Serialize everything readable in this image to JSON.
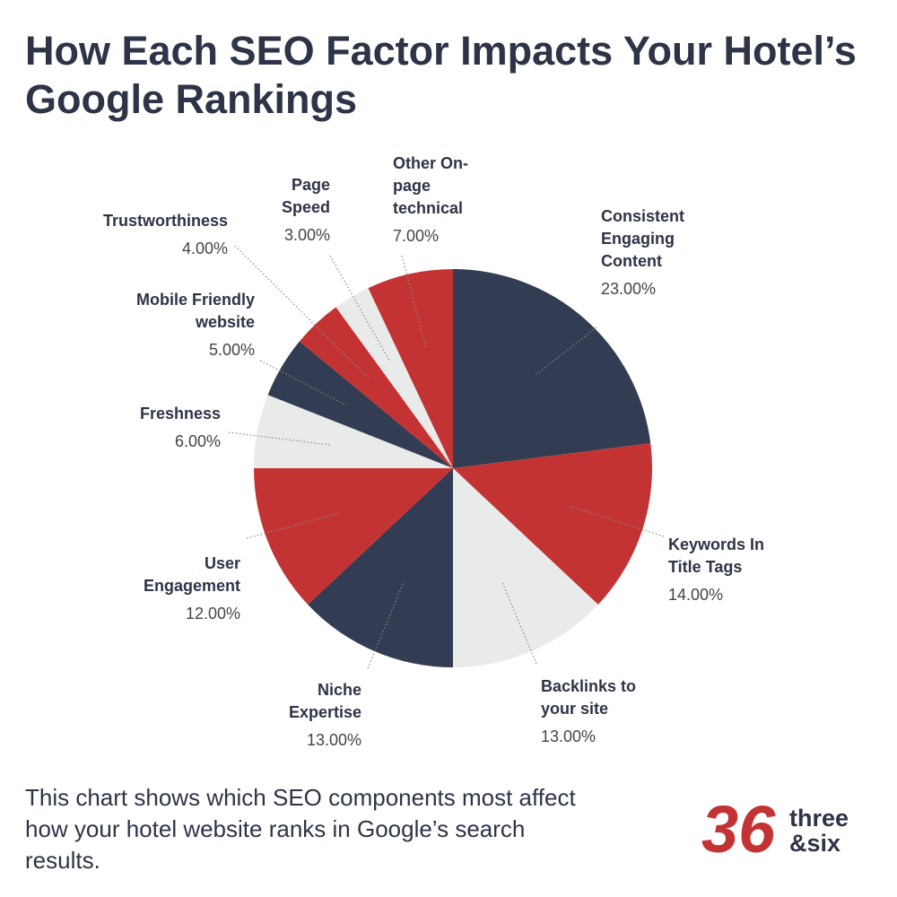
{
  "title": "How Each SEO Factor Impacts Your Hotel’s Google Rankings",
  "chart_data": {
    "type": "pie",
    "categories": [
      "Consistent Engaging Content",
      "Keywords In Title Tags",
      "Backlinks to your site",
      "Niche Expertise",
      "User Engagement",
      "Freshness",
      "Mobile Friendly website",
      "Trustworthiness",
      "Page Speed",
      "Other On-page technical"
    ],
    "values": [
      23,
      14,
      13,
      13,
      12,
      6,
      5,
      4,
      3,
      7
    ],
    "value_labels": [
      "23.00%",
      "14.00%",
      "13.00%",
      "13.00%",
      "12.00%",
      "6.00%",
      "5.00%",
      "4.00%",
      "3.00%",
      "7.00%"
    ],
    "colors": [
      "#323c52",
      "#c43333",
      "#e9eaea",
      "#323c52",
      "#c43333",
      "#e9eaea",
      "#323c52",
      "#c43333",
      "#e9eaea",
      "#c43333"
    ]
  },
  "footer": "This chart shows which SEO components most affect how your hotel website ranks in Google’s search results.",
  "logo": {
    "mark": "36",
    "line1": "three",
    "line2": "&six"
  }
}
